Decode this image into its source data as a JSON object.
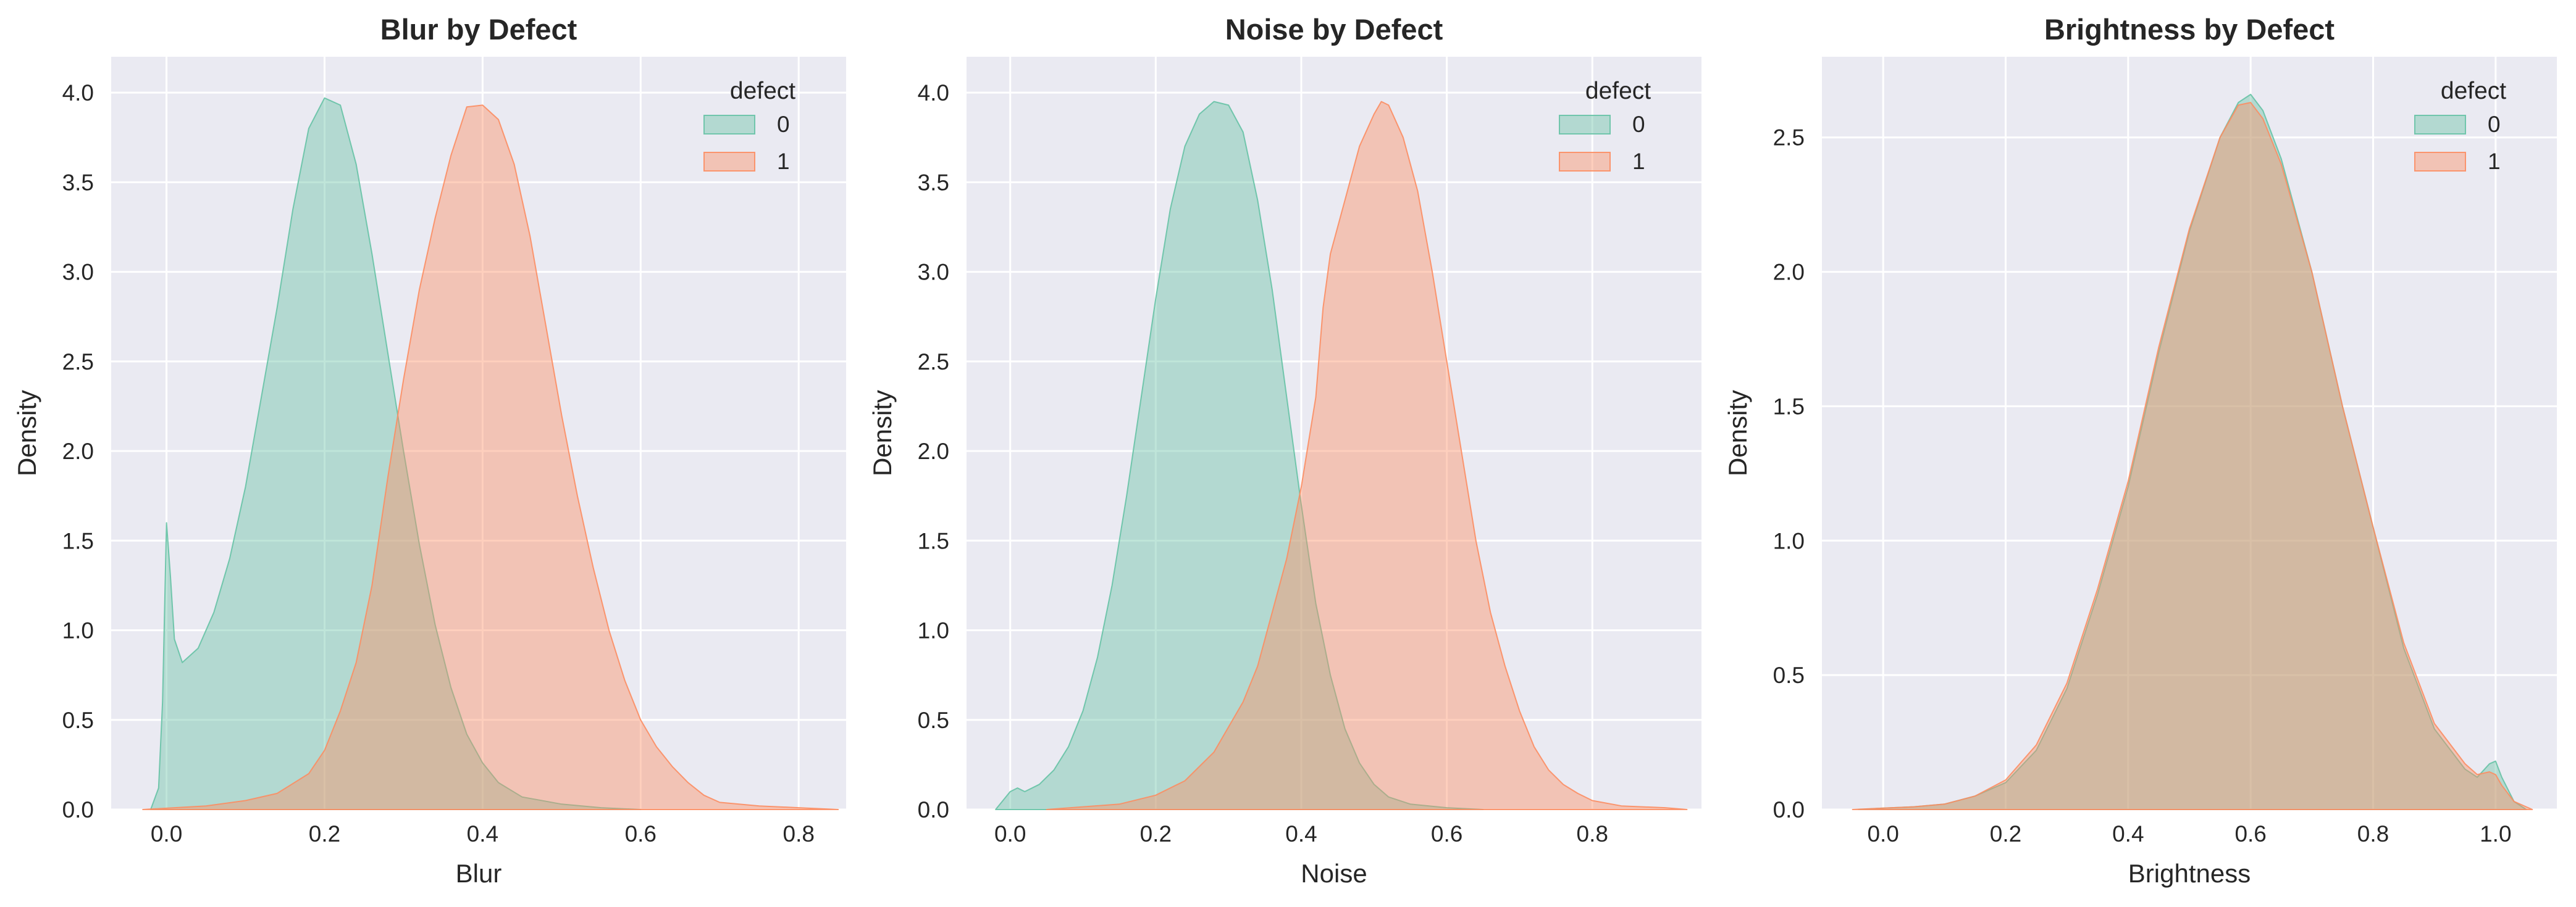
{
  "chart_data": [
    {
      "type": "area",
      "title": "Blur by Defect",
      "xlabel": "Blur",
      "ylabel": "Density",
      "xlim": [
        -0.07,
        0.86
      ],
      "ylim": [
        0,
        4.2
      ],
      "xticks": [
        0.0,
        0.2,
        0.4,
        0.6,
        0.8
      ],
      "xtick_labels": [
        "0.0",
        "0.2",
        "0.4",
        "0.6",
        "0.8"
      ],
      "yticks": [
        0.0,
        0.5,
        1.0,
        1.5,
        2.0,
        2.5,
        3.0,
        3.5,
        4.0
      ],
      "ytick_labels": [
        "0.0",
        "0.5",
        "1.0",
        "1.5",
        "2.0",
        "2.5",
        "3.0",
        "3.5",
        "4.0"
      ],
      "grid": true,
      "legend": {
        "title": "defect",
        "placement": "top-right"
      },
      "series": [
        {
          "name": "0",
          "color": "#66c2a5",
          "points": [
            [
              -0.02,
              0.0
            ],
            [
              -0.01,
              0.12
            ],
            [
              -0.005,
              0.6
            ],
            [
              0.0,
              1.6
            ],
            [
              0.005,
              1.3
            ],
            [
              0.01,
              0.95
            ],
            [
              0.02,
              0.82
            ],
            [
              0.04,
              0.9
            ],
            [
              0.06,
              1.1
            ],
            [
              0.08,
              1.4
            ],
            [
              0.1,
              1.8
            ],
            [
              0.12,
              2.3
            ],
            [
              0.14,
              2.8
            ],
            [
              0.16,
              3.35
            ],
            [
              0.18,
              3.8
            ],
            [
              0.2,
              3.97
            ],
            [
              0.22,
              3.93
            ],
            [
              0.24,
              3.6
            ],
            [
              0.26,
              3.1
            ],
            [
              0.28,
              2.55
            ],
            [
              0.3,
              2.0
            ],
            [
              0.32,
              1.48
            ],
            [
              0.34,
              1.03
            ],
            [
              0.36,
              0.68
            ],
            [
              0.38,
              0.42
            ],
            [
              0.4,
              0.26
            ],
            [
              0.42,
              0.15
            ],
            [
              0.45,
              0.07
            ],
            [
              0.5,
              0.03
            ],
            [
              0.55,
              0.01
            ],
            [
              0.6,
              0.0
            ]
          ]
        },
        {
          "name": "1",
          "color": "#fc8d62",
          "points": [
            [
              -0.03,
              0.0
            ],
            [
              0.05,
              0.02
            ],
            [
              0.1,
              0.05
            ],
            [
              0.14,
              0.09
            ],
            [
              0.18,
              0.2
            ],
            [
              0.2,
              0.33
            ],
            [
              0.22,
              0.55
            ],
            [
              0.24,
              0.82
            ],
            [
              0.26,
              1.25
            ],
            [
              0.28,
              1.85
            ],
            [
              0.3,
              2.4
            ],
            [
              0.32,
              2.9
            ],
            [
              0.34,
              3.3
            ],
            [
              0.36,
              3.65
            ],
            [
              0.38,
              3.92
            ],
            [
              0.4,
              3.93
            ],
            [
              0.42,
              3.85
            ],
            [
              0.44,
              3.6
            ],
            [
              0.46,
              3.2
            ],
            [
              0.48,
              2.7
            ],
            [
              0.5,
              2.2
            ],
            [
              0.52,
              1.75
            ],
            [
              0.54,
              1.35
            ],
            [
              0.56,
              1.0
            ],
            [
              0.58,
              0.72
            ],
            [
              0.6,
              0.5
            ],
            [
              0.62,
              0.35
            ],
            [
              0.64,
              0.24
            ],
            [
              0.66,
              0.15
            ],
            [
              0.68,
              0.08
            ],
            [
              0.7,
              0.04
            ],
            [
              0.75,
              0.02
            ],
            [
              0.8,
              0.01
            ],
            [
              0.85,
              0.0
            ]
          ]
        }
      ]
    },
    {
      "type": "area",
      "title": "Noise by Defect",
      "xlabel": "Noise",
      "ylabel": "Density",
      "xlim": [
        -0.06,
        0.95
      ],
      "ylim": [
        0,
        4.2
      ],
      "xticks": [
        0.0,
        0.2,
        0.4,
        0.6,
        0.8
      ],
      "xtick_labels": [
        "0.0",
        "0.2",
        "0.4",
        "0.6",
        "0.8"
      ],
      "yticks": [
        0.0,
        0.5,
        1.0,
        1.5,
        2.0,
        2.5,
        3.0,
        3.5,
        4.0
      ],
      "ytick_labels": [
        "0.0",
        "0.5",
        "1.0",
        "1.5",
        "2.0",
        "2.5",
        "3.0",
        "3.5",
        "4.0"
      ],
      "grid": true,
      "legend": {
        "title": "defect",
        "placement": "top-right"
      },
      "series": [
        {
          "name": "0",
          "color": "#66c2a5",
          "points": [
            [
              -0.02,
              0.0
            ],
            [
              -0.01,
              0.05
            ],
            [
              0.0,
              0.1
            ],
            [
              0.01,
              0.12
            ],
            [
              0.02,
              0.1
            ],
            [
              0.04,
              0.14
            ],
            [
              0.06,
              0.22
            ],
            [
              0.08,
              0.35
            ],
            [
              0.1,
              0.55
            ],
            [
              0.12,
              0.85
            ],
            [
              0.14,
              1.25
            ],
            [
              0.16,
              1.75
            ],
            [
              0.18,
              2.3
            ],
            [
              0.2,
              2.85
            ],
            [
              0.22,
              3.35
            ],
            [
              0.24,
              3.7
            ],
            [
              0.26,
              3.88
            ],
            [
              0.28,
              3.95
            ],
            [
              0.3,
              3.93
            ],
            [
              0.32,
              3.78
            ],
            [
              0.34,
              3.4
            ],
            [
              0.36,
              2.9
            ],
            [
              0.38,
              2.3
            ],
            [
              0.4,
              1.7
            ],
            [
              0.42,
              1.15
            ],
            [
              0.44,
              0.75
            ],
            [
              0.46,
              0.45
            ],
            [
              0.48,
              0.26
            ],
            [
              0.5,
              0.14
            ],
            [
              0.52,
              0.07
            ],
            [
              0.55,
              0.03
            ],
            [
              0.6,
              0.01
            ],
            [
              0.65,
              0.0
            ]
          ]
        },
        {
          "name": "1",
          "color": "#fc8d62",
          "points": [
            [
              0.05,
              0.0
            ],
            [
              0.15,
              0.03
            ],
            [
              0.2,
              0.08
            ],
            [
              0.24,
              0.16
            ],
            [
              0.28,
              0.32
            ],
            [
              0.32,
              0.6
            ],
            [
              0.34,
              0.8
            ],
            [
              0.36,
              1.1
            ],
            [
              0.38,
              1.4
            ],
            [
              0.4,
              1.8
            ],
            [
              0.42,
              2.3
            ],
            [
              0.43,
              2.8
            ],
            [
              0.44,
              3.1
            ],
            [
              0.46,
              3.4
            ],
            [
              0.48,
              3.7
            ],
            [
              0.5,
              3.88
            ],
            [
              0.51,
              3.95
            ],
            [
              0.52,
              3.93
            ],
            [
              0.54,
              3.75
            ],
            [
              0.56,
              3.45
            ],
            [
              0.58,
              3.0
            ],
            [
              0.6,
              2.5
            ],
            [
              0.62,
              2.0
            ],
            [
              0.64,
              1.5
            ],
            [
              0.66,
              1.1
            ],
            [
              0.68,
              0.8
            ],
            [
              0.7,
              0.55
            ],
            [
              0.72,
              0.35
            ],
            [
              0.74,
              0.22
            ],
            [
              0.76,
              0.14
            ],
            [
              0.78,
              0.09
            ],
            [
              0.8,
              0.05
            ],
            [
              0.84,
              0.02
            ],
            [
              0.9,
              0.01
            ],
            [
              0.93,
              0.0
            ]
          ]
        }
      ]
    },
    {
      "type": "area",
      "title": "Brightness by Defect",
      "xlabel": "Brightness",
      "ylabel": "Density",
      "xlim": [
        -0.1,
        1.1
      ],
      "ylim": [
        0,
        2.8
      ],
      "xticks": [
        0.0,
        0.2,
        0.4,
        0.6,
        0.8,
        1.0
      ],
      "xtick_labels": [
        "0.0",
        "0.2",
        "0.4",
        "0.6",
        "0.8",
        "1.0"
      ],
      "yticks": [
        0.0,
        0.5,
        1.0,
        1.5,
        2.0,
        2.5
      ],
      "ytick_labels": [
        "0.0",
        "0.5",
        "1.0",
        "1.5",
        "2.0",
        "2.5"
      ],
      "grid": true,
      "legend": {
        "title": "defect",
        "placement": "top-right"
      },
      "series": [
        {
          "name": "0",
          "color": "#66c2a5",
          "points": [
            [
              -0.04,
              0.0
            ],
            [
              0.0,
              0.005
            ],
            [
              0.05,
              0.01
            ],
            [
              0.1,
              0.02
            ],
            [
              0.15,
              0.05
            ],
            [
              0.2,
              0.1
            ],
            [
              0.25,
              0.22
            ],
            [
              0.3,
              0.45
            ],
            [
              0.35,
              0.8
            ],
            [
              0.4,
              1.2
            ],
            [
              0.45,
              1.7
            ],
            [
              0.5,
              2.15
            ],
            [
              0.55,
              2.5
            ],
            [
              0.58,
              2.63
            ],
            [
              0.6,
              2.66
            ],
            [
              0.62,
              2.6
            ],
            [
              0.65,
              2.42
            ],
            [
              0.7,
              2.0
            ],
            [
              0.75,
              1.5
            ],
            [
              0.8,
              1.05
            ],
            [
              0.85,
              0.6
            ],
            [
              0.9,
              0.3
            ],
            [
              0.95,
              0.15
            ],
            [
              0.97,
              0.12
            ],
            [
              0.99,
              0.17
            ],
            [
              1.0,
              0.18
            ],
            [
              1.01,
              0.12
            ],
            [
              1.03,
              0.03
            ],
            [
              1.05,
              0.0
            ]
          ]
        },
        {
          "name": "1",
          "color": "#fc8d62",
          "points": [
            [
              -0.05,
              0.0
            ],
            [
              0.0,
              0.005
            ],
            [
              0.05,
              0.01
            ],
            [
              0.1,
              0.02
            ],
            [
              0.15,
              0.05
            ],
            [
              0.2,
              0.11
            ],
            [
              0.25,
              0.24
            ],
            [
              0.3,
              0.47
            ],
            [
              0.35,
              0.82
            ],
            [
              0.4,
              1.22
            ],
            [
              0.45,
              1.72
            ],
            [
              0.5,
              2.16
            ],
            [
              0.55,
              2.5
            ],
            [
              0.58,
              2.62
            ],
            [
              0.6,
              2.63
            ],
            [
              0.62,
              2.57
            ],
            [
              0.65,
              2.4
            ],
            [
              0.7,
              2.0
            ],
            [
              0.75,
              1.5
            ],
            [
              0.8,
              1.05
            ],
            [
              0.85,
              0.62
            ],
            [
              0.9,
              0.32
            ],
            [
              0.95,
              0.17
            ],
            [
              0.97,
              0.13
            ],
            [
              0.99,
              0.14
            ],
            [
              1.0,
              0.13
            ],
            [
              1.01,
              0.09
            ],
            [
              1.03,
              0.03
            ],
            [
              1.06,
              0.0
            ]
          ]
        }
      ]
    }
  ]
}
